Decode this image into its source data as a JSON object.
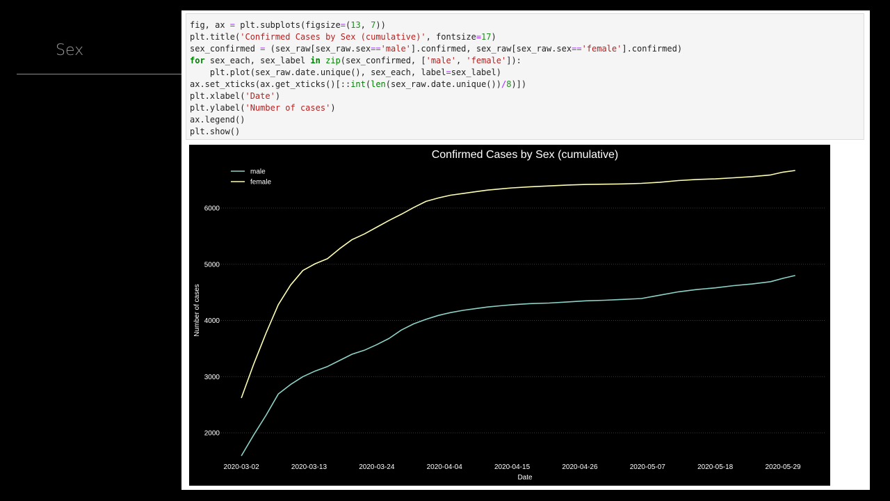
{
  "slide": {
    "section_title": "Sex"
  },
  "code_cell": {
    "lines": [
      "fig, ax = plt.subplots(figsize=(13, 7))",
      "plt.title('Confirmed Cases by Sex (cumulative)', fontsize=17)",
      "sex_confirmed = (sex_raw[sex_raw.sex=='male'].confirmed, sex_raw[sex_raw.sex=='female'].confirmed)",
      "for sex_each, sex_label in zip(sex_confirmed, ['male', 'female']):",
      "    plt.plot(sex_raw.date.unique(), sex_each, label=sex_label)",
      "ax.set_xticks(ax.get_xticks()[::int(len(sex_raw.date.unique())/8)])",
      "plt.xlabel('Date')",
      "plt.ylabel('Number of cases')",
      "ax.legend()",
      "plt.show()"
    ]
  },
  "chart_data": {
    "type": "line",
    "title": "Confirmed Cases by Sex (cumulative)",
    "xlabel": "Date",
    "ylabel": "Number of cases",
    "x_tick_labels": [
      "2020-03-02",
      "2020-03-13",
      "2020-03-24",
      "2020-04-04",
      "2020-04-15",
      "2020-04-26",
      "2020-05-07",
      "2020-05-18",
      "2020-05-29"
    ],
    "y_ticks": [
      2000,
      3000,
      4000,
      5000,
      6000
    ],
    "ylim": [
      1480,
      6880
    ],
    "xlim": [
      "2020-02-25",
      "2020-06-05"
    ],
    "grid": true,
    "legend_position": "top-left",
    "x": [
      "2020-03-02",
      "2020-03-04",
      "2020-03-06",
      "2020-03-08",
      "2020-03-10",
      "2020-03-12",
      "2020-03-14",
      "2020-03-16",
      "2020-03-18",
      "2020-03-20",
      "2020-03-22",
      "2020-03-24",
      "2020-03-26",
      "2020-03-28",
      "2020-03-30",
      "2020-04-01",
      "2020-04-03",
      "2020-04-05",
      "2020-04-07",
      "2020-04-09",
      "2020-04-11",
      "2020-04-13",
      "2020-04-15",
      "2020-04-18",
      "2020-04-21",
      "2020-04-24",
      "2020-04-27",
      "2020-04-30",
      "2020-05-03",
      "2020-05-06",
      "2020-05-09",
      "2020-05-12",
      "2020-05-15",
      "2020-05-18",
      "2020-05-21",
      "2020-05-24",
      "2020-05-27",
      "2020-05-29",
      "2020-05-31"
    ],
    "series": [
      {
        "name": "male",
        "color": "#8dd3c7",
        "values": [
          1590,
          1960,
          2310,
          2690,
          2860,
          3000,
          3100,
          3180,
          3290,
          3400,
          3470,
          3570,
          3680,
          3830,
          3940,
          4020,
          4090,
          4140,
          4180,
          4210,
          4240,
          4260,
          4280,
          4300,
          4310,
          4330,
          4350,
          4360,
          4375,
          4390,
          4450,
          4510,
          4550,
          4580,
          4620,
          4650,
          4690,
          4750,
          4800
        ]
      },
      {
        "name": "female",
        "color": "#ffffb3",
        "values": [
          2620,
          3220,
          3770,
          4280,
          4630,
          4890,
          5010,
          5100,
          5280,
          5440,
          5540,
          5660,
          5780,
          5890,
          6010,
          6120,
          6180,
          6230,
          6260,
          6290,
          6320,
          6340,
          6360,
          6380,
          6395,
          6410,
          6420,
          6425,
          6430,
          6440,
          6460,
          6490,
          6510,
          6520,
          6540,
          6560,
          6590,
          6640,
          6670
        ]
      }
    ]
  }
}
